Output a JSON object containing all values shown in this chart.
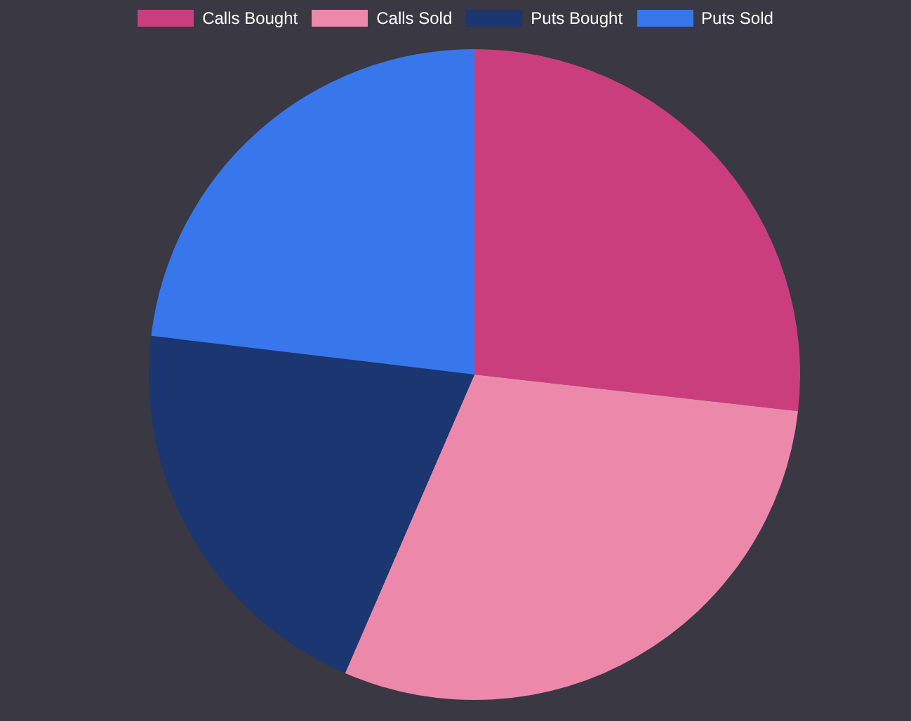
{
  "chart_data": {
    "type": "pie",
    "categories": [
      "Calls Bought",
      "Calls Sold",
      "Puts Bought",
      "Puts Sold"
    ],
    "values": [
      26.8,
      29.7,
      20.4,
      23.1
    ],
    "colors": [
      "#cb3e7e",
      "#ec89aa",
      "#1b3670",
      "#3876ec"
    ],
    "legend": "top"
  }
}
